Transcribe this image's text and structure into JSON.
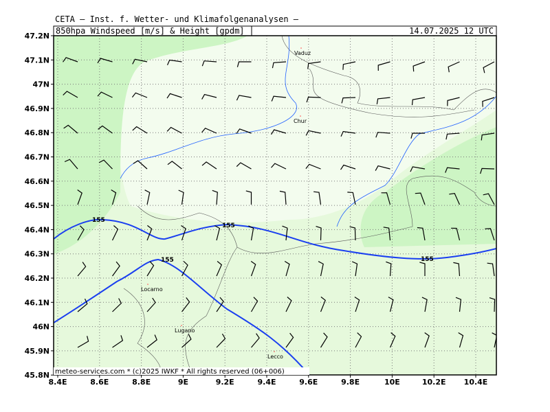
{
  "header": {
    "institute": "CETA – Inst. f. Wetter- und Klimafolgenanalysen –",
    "title": "850hpa_Windspeed_[m/s]_&_Height_[gpdm]",
    "datetime": "14.07.2025 12 UTC"
  },
  "axes": {
    "lon_labels": [
      "8.4E",
      "8.6E",
      "8.8E",
      "9E",
      "9.2E",
      "9.4E",
      "9.6E",
      "9.8E",
      "10E",
      "10.2E",
      "10.4E"
    ],
    "lat_labels": [
      "47.2N",
      "47.1N",
      "47N",
      "46.9N",
      "46.8N",
      "46.7N",
      "46.6N",
      "46.5N",
      "46.4N",
      "46.3N",
      "46.2N",
      "46.1N",
      "46N",
      "45.9N",
      "45.8N"
    ]
  },
  "cities": [
    "Vaduz",
    "Chur",
    "Locarno",
    "Lugano",
    "Lecco"
  ],
  "contour_labels": [
    "155",
    "155",
    "155",
    "155"
  ],
  "footer": "meteo-services.com * (c)2025 IWKF * All rights reserved (06+006)"
}
